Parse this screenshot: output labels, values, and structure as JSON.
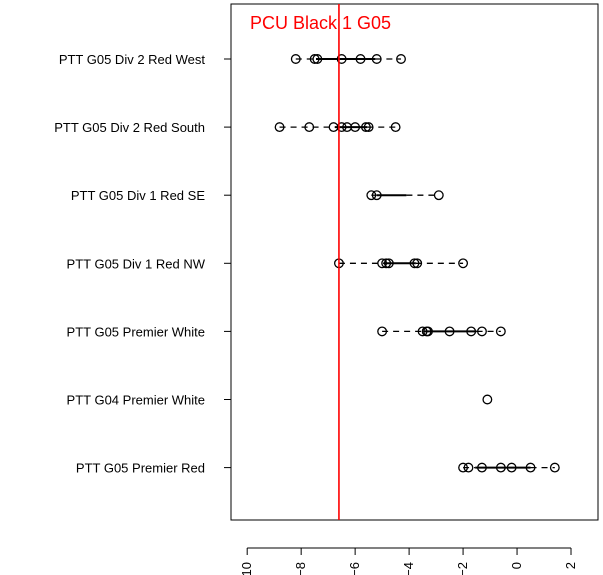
{
  "chart_data": {
    "type": "scatter",
    "xlim": [
      -10.6,
      3.0
    ],
    "x_ticks": [
      -10,
      -8,
      -6,
      -4,
      -2,
      0,
      2
    ],
    "x_tick_labels": [
      "−10",
      "−8",
      "−6",
      "−4",
      "−2",
      "0",
      "2"
    ],
    "reference_line": {
      "x": -6.6,
      "label": "PCU Black 1 G05",
      "color": "#ff0000"
    },
    "teams": [
      {
        "name": "PTT G05 Div 2 Red West",
        "points": [
          -8.2,
          -7.5,
          -7.4,
          -6.5,
          -5.8,
          -5.2,
          -4.3
        ],
        "box": [
          -7.45,
          -5.25
        ]
      },
      {
        "name": "PTT G05 Div 2 Red South",
        "points": [
          -8.8,
          -7.7,
          -6.8,
          -6.5,
          -6.3,
          -6.0,
          -5.6,
          -5.5,
          -4.5
        ],
        "box": [
          -6.75,
          -5.55
        ]
      },
      {
        "name": "PTT G05 Div 1 Red SE",
        "points": [
          -5.4,
          -5.2,
          -2.9
        ],
        "box": [
          -5.2,
          -4.1
        ]
      },
      {
        "name": "PTT G05 Div 1 Red NW",
        "points": [
          -6.6,
          -5.0,
          -4.85,
          -4.75,
          -3.8,
          -3.7,
          -2.0
        ],
        "box": [
          -4.95,
          -3.75
        ]
      },
      {
        "name": "PTT G05 Premier White",
        "points": [
          -5.0,
          -3.5,
          -3.35,
          -3.3,
          -2.5,
          -1.7,
          -1.3,
          -0.6
        ],
        "box": [
          -3.45,
          -1.5
        ]
      },
      {
        "name": "PTT G04 Premier White",
        "points": [
          -1.1
        ],
        "box": [
          -1.1,
          -1.1
        ]
      },
      {
        "name": "PTT G05 Premier Red",
        "points": [
          -2.0,
          -1.8,
          -1.3,
          -0.6,
          -0.2,
          0.5,
          1.4
        ],
        "box": [
          -1.55,
          0.5
        ]
      }
    ]
  },
  "colors": {
    "axis": "#000000",
    "reference": "#ff0000"
  }
}
